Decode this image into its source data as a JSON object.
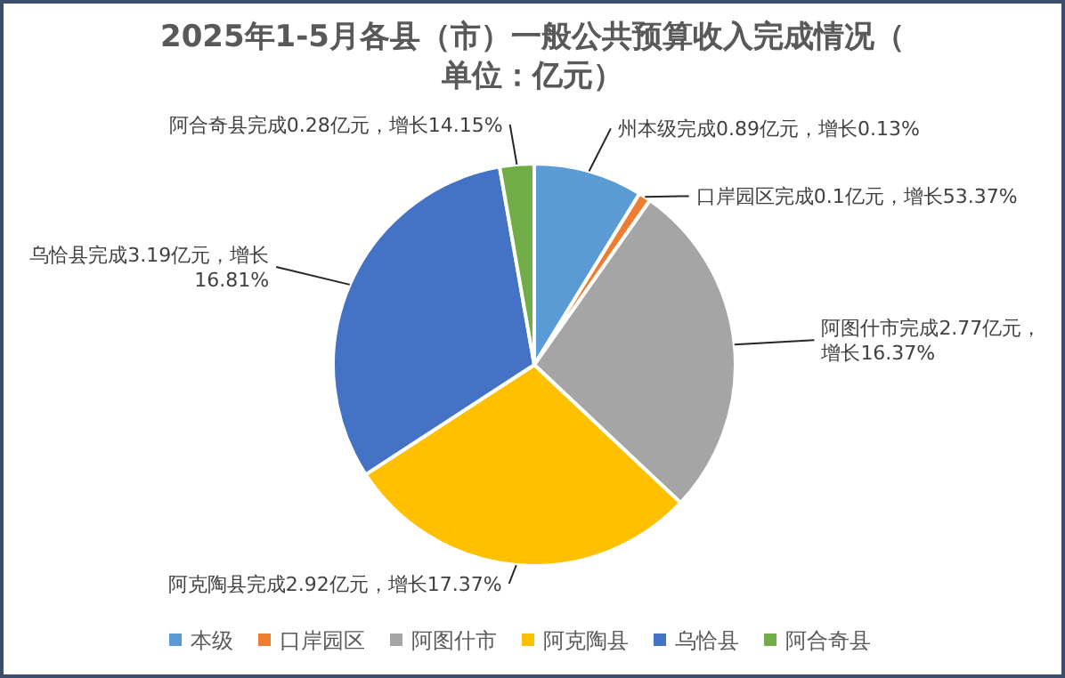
{
  "chart_data": {
    "type": "pie",
    "title": "2025年1-5月各县（市）一般公共预算收入完成情况（单位：亿元）",
    "categories": [
      "本级",
      "口岸园区",
      "阿图什市",
      "阿克陶县",
      "乌恰县",
      "阿合奇县"
    ],
    "values": [
      0.89,
      0.1,
      2.77,
      2.92,
      3.19,
      0.28
    ],
    "colors": [
      "#5b9bd5",
      "#ed7d31",
      "#a5a5a5",
      "#ffc000",
      "#4472c4",
      "#70ad47"
    ],
    "value_labels": [
      "州本级完成0.89亿元，增长0.13%",
      "口岸园区完成0.1亿元，增长53.37%",
      "阿图什市完成2.77亿元，增长16.37%",
      "阿克陶县完成2.92亿元，增长17.37%",
      "乌恰县完成3.19亿元，增长16.81%",
      "阿合奇县完成0.28亿元，增长14.15%"
    ],
    "legend": "bottom"
  }
}
